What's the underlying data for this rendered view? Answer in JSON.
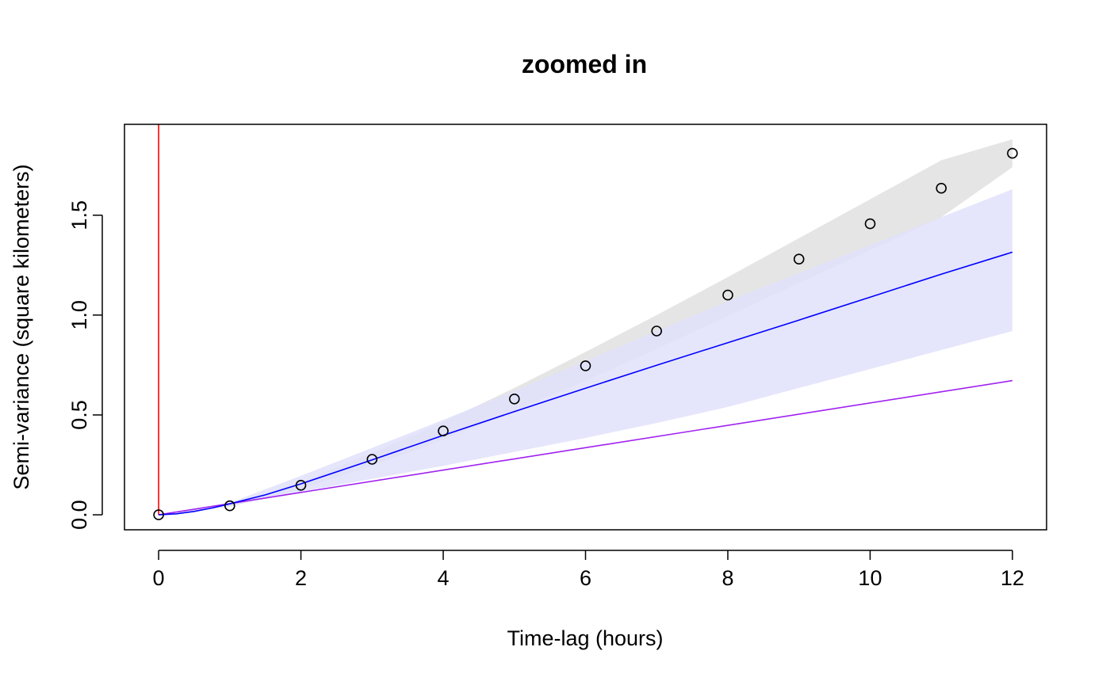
{
  "chart_data": {
    "type": "line",
    "title": "zoomed in",
    "xlabel": "Time-lag (hours)",
    "ylabel": "Semi-variance (square kilometers)",
    "xlim": [
      -0.48,
      12.48
    ],
    "ylim": [
      -0.075,
      1.955
    ],
    "x_ticks": [
      0,
      2,
      4,
      6,
      8,
      10,
      12
    ],
    "x_tick_labels": [
      "0",
      "2",
      "4",
      "6",
      "8",
      "10",
      "12"
    ],
    "y_ticks": [
      0.0,
      0.5,
      1.0,
      1.5
    ],
    "y_tick_labels": [
      "0.0",
      "0.5",
      "1.0",
      "1.5"
    ],
    "grid": false,
    "colors": {
      "points": "#000000",
      "empirical_band": "#e5e5e5",
      "model_band": "#e0e0fc",
      "model_line": "#0000ff",
      "second_model_line": "#a020f0",
      "vertical_line": "#ff0000"
    },
    "vertical_line_x": 0,
    "points": {
      "x": [
        0,
        1,
        2,
        3,
        4,
        5,
        6,
        7,
        8,
        9,
        10,
        11,
        12
      ],
      "y": [
        0.0,
        0.045,
        0.148,
        0.278,
        0.42,
        0.58,
        0.746,
        0.92,
        1.1,
        1.28,
        1.457,
        1.635,
        1.81
      ]
    },
    "empirical_band": {
      "x": [
        0,
        1,
        2,
        3,
        4,
        5,
        6,
        7,
        8,
        9,
        10,
        11,
        12
      ],
      "lower": [
        0.0,
        0.04,
        0.13,
        0.245,
        0.375,
        0.52,
        0.67,
        0.83,
        0.995,
        1.16,
        1.325,
        1.49,
        1.74
      ],
      "upper": [
        0.0,
        0.05,
        0.165,
        0.31,
        0.465,
        0.635,
        0.815,
        1.0,
        1.19,
        1.385,
        1.58,
        1.775,
        1.88
      ]
    },
    "model_band": {
      "x": [
        0,
        1,
        2,
        3,
        4,
        5,
        6,
        7,
        8,
        9,
        10,
        11,
        12
      ],
      "lower": [
        0.0,
        0.045,
        0.115,
        0.18,
        0.245,
        0.315,
        0.385,
        0.46,
        0.54,
        0.635,
        0.73,
        0.825,
        0.92
      ],
      "upper": [
        0.0,
        0.06,
        0.195,
        0.335,
        0.475,
        0.62,
        0.77,
        0.92,
        1.07,
        1.21,
        1.35,
        1.49,
        1.63
      ]
    },
    "series": [
      {
        "x": [
          0,
          0.25,
          0.5,
          0.75,
          1,
          1.5,
          2,
          3,
          4,
          5,
          6,
          7,
          8,
          9,
          10,
          11,
          12
        ],
        "y": [
          0.0,
          0.005,
          0.017,
          0.034,
          0.055,
          0.1,
          0.155,
          0.275,
          0.398,
          0.517,
          0.634,
          0.749,
          0.862,
          0.975,
          1.09,
          1.205,
          1.315
        ]
      },
      {
        "x": [
          0,
          12
        ],
        "y": [
          0.0,
          0.672
        ]
      }
    ]
  }
}
